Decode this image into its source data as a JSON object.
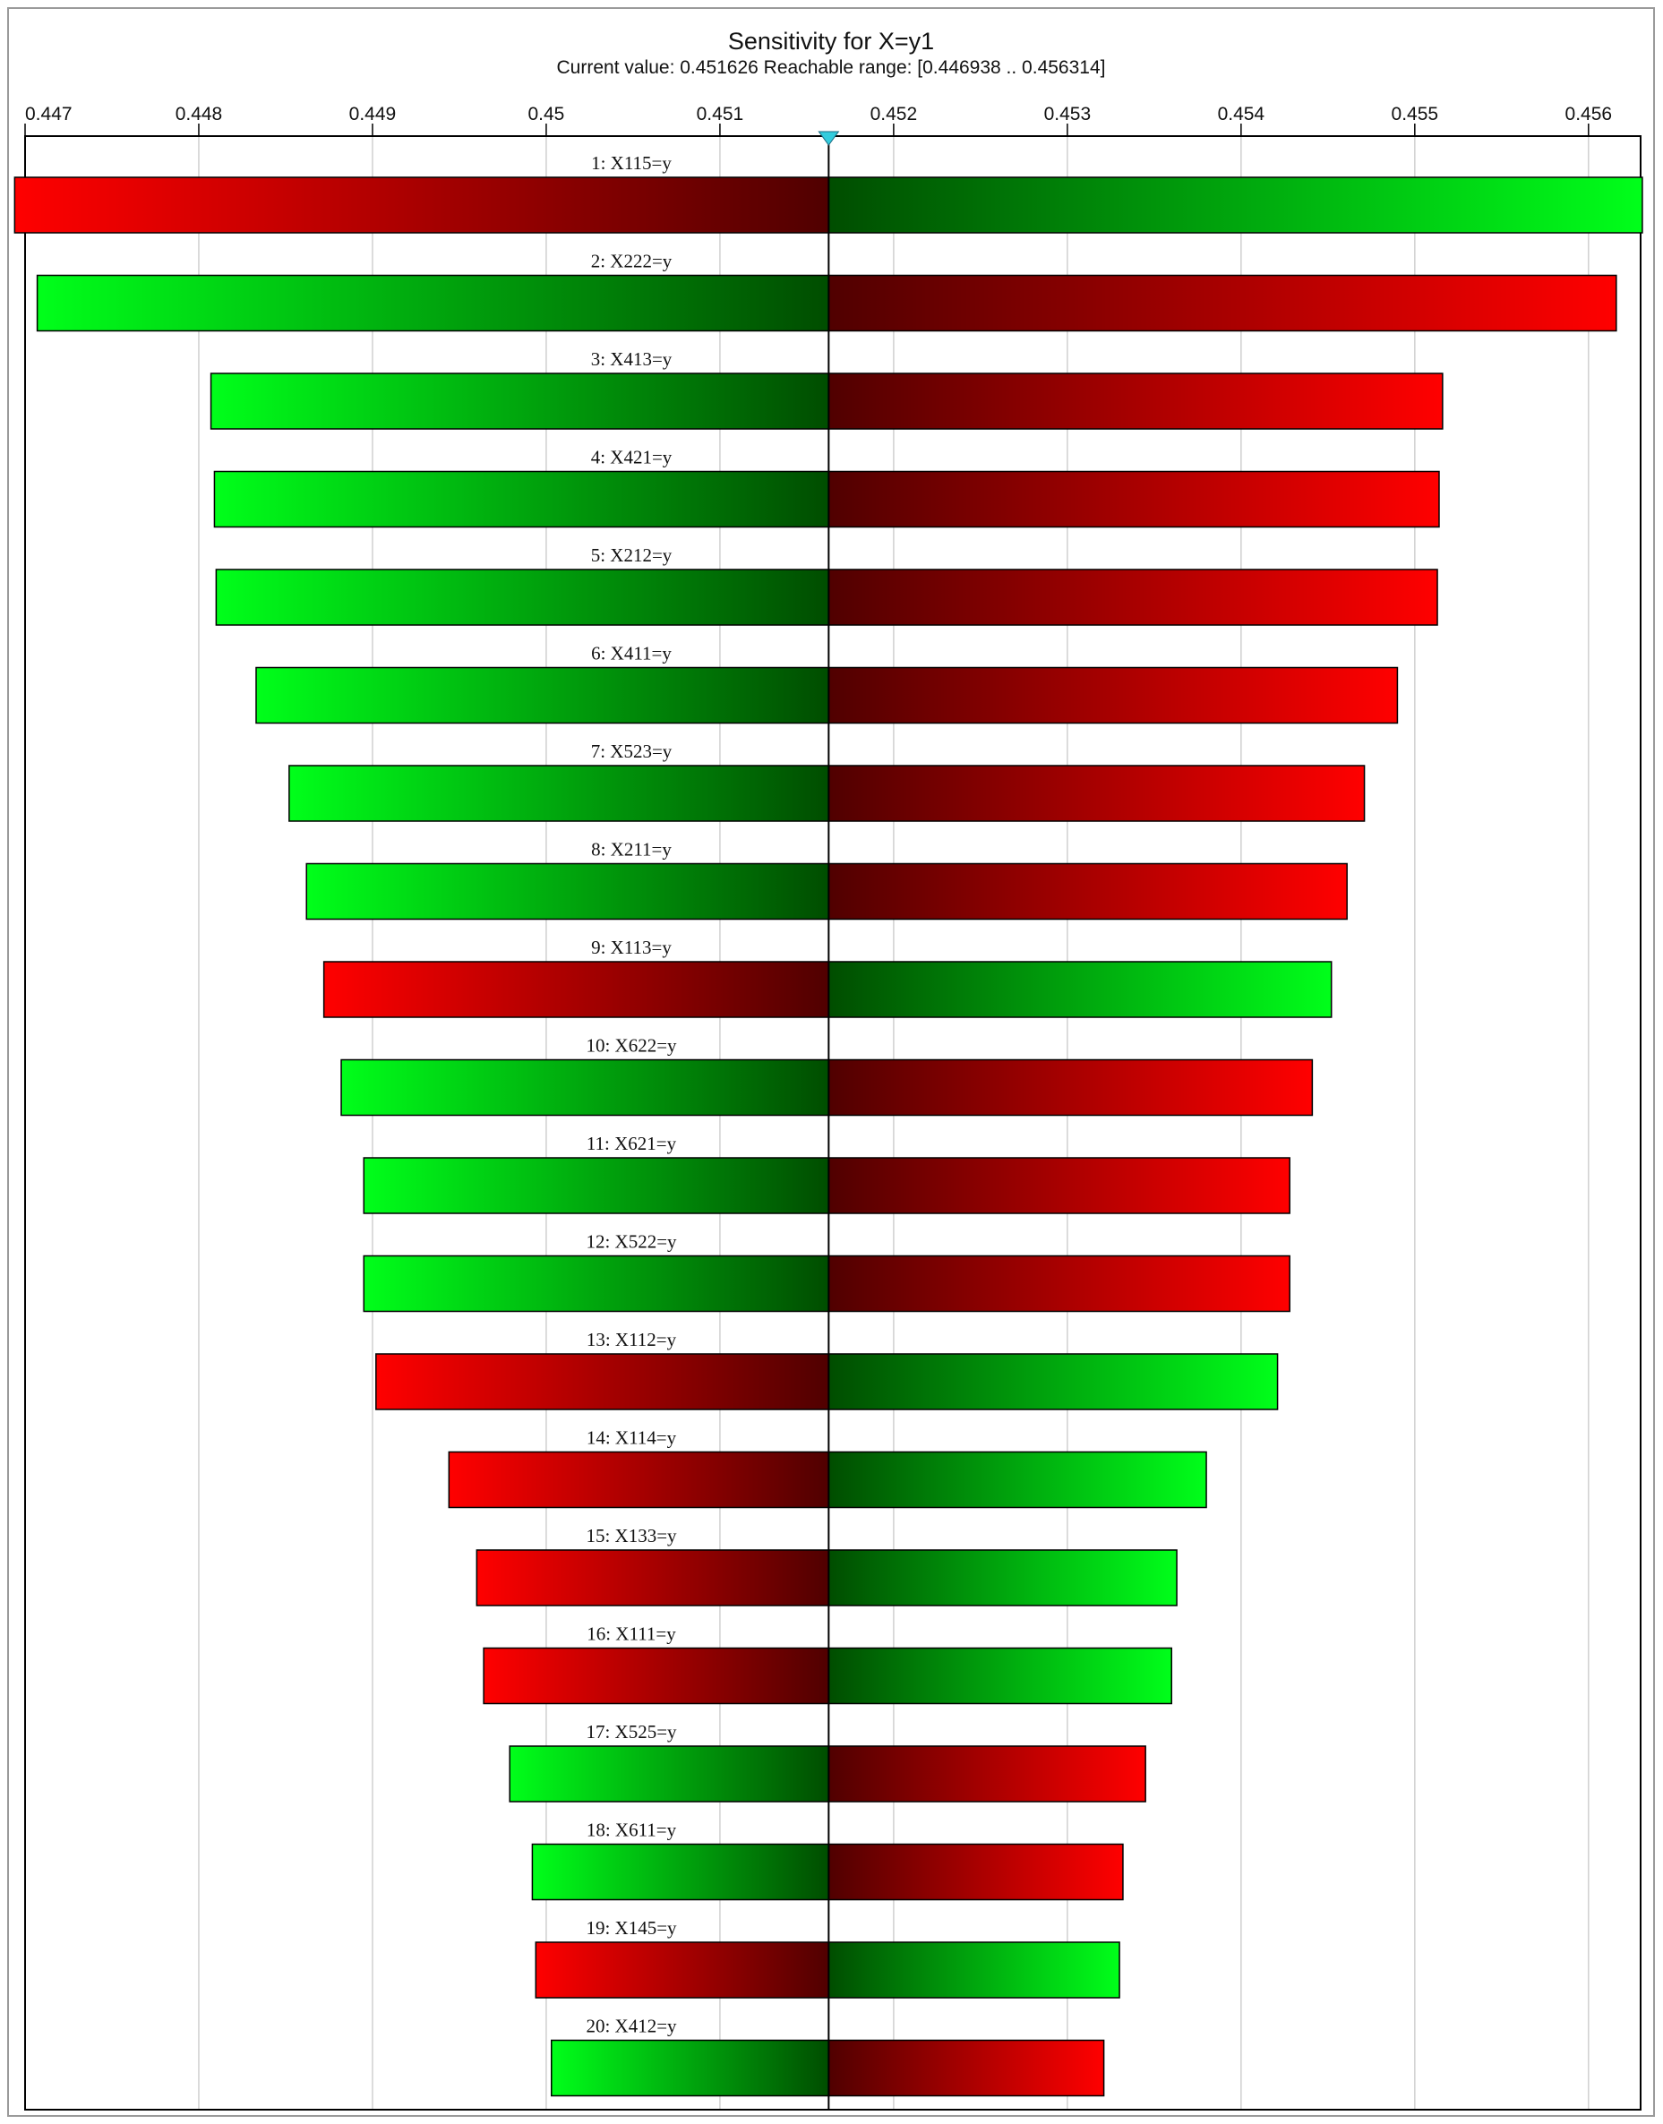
{
  "chart_data": {
    "type": "bar",
    "orientation": "horizontal",
    "title": "Sensitivity for X=y1",
    "subtitle": "Current value: 0.451626  Reachable range: [0.446938 .. 0.456314]",
    "current_value": 0.451626,
    "reachable_range": [
      0.446938,
      0.456314
    ],
    "xlim": [
      0.447,
      0.4563
    ],
    "x_ticks": [
      "0.447",
      "0.448",
      "0.449",
      "0.45",
      "0.451",
      "0.452",
      "0.453",
      "0.454",
      "0.455",
      "0.456"
    ],
    "grid": true,
    "colors": {
      "red": "#ff0000",
      "dark_red": "#500000",
      "green": "#00ff1a",
      "dark_green": "#004d00",
      "marker": "#33ccdd"
    },
    "bars": [
      {
        "label": "1: X115=y",
        "min": 0.44694,
        "max": 0.45631,
        "left_color": "red"
      },
      {
        "label": "2: X222=y",
        "min": 0.44707,
        "max": 0.45616,
        "left_color": "green"
      },
      {
        "label": "3: X413=y",
        "min": 0.44807,
        "max": 0.45516,
        "left_color": "green"
      },
      {
        "label": "4: X421=y",
        "min": 0.44809,
        "max": 0.45514,
        "left_color": "green"
      },
      {
        "label": "5: X212=y",
        "min": 0.4481,
        "max": 0.45513,
        "left_color": "green"
      },
      {
        "label": "6: X411=y",
        "min": 0.44833,
        "max": 0.4549,
        "left_color": "green"
      },
      {
        "label": "7: X523=y",
        "min": 0.44852,
        "max": 0.45471,
        "left_color": "green"
      },
      {
        "label": "8: X211=y",
        "min": 0.44862,
        "max": 0.45461,
        "left_color": "green"
      },
      {
        "label": "9: X113=y",
        "min": 0.44872,
        "max": 0.45452,
        "left_color": "red"
      },
      {
        "label": "10: X622=y",
        "min": 0.44882,
        "max": 0.45441,
        "left_color": "green"
      },
      {
        "label": "11: X621=y",
        "min": 0.44895,
        "max": 0.45428,
        "left_color": "green"
      },
      {
        "label": "12: X522=y",
        "min": 0.44895,
        "max": 0.45428,
        "left_color": "green"
      },
      {
        "label": "13: X112=y",
        "min": 0.44902,
        "max": 0.45421,
        "left_color": "red"
      },
      {
        "label": "14: X114=y",
        "min": 0.44944,
        "max": 0.4538,
        "left_color": "red"
      },
      {
        "label": "15: X133=y",
        "min": 0.4496,
        "max": 0.45363,
        "left_color": "red"
      },
      {
        "label": "16: X111=y",
        "min": 0.44964,
        "max": 0.4536,
        "left_color": "red"
      },
      {
        "label": "17: X525=y",
        "min": 0.44979,
        "max": 0.45345,
        "left_color": "green"
      },
      {
        "label": "18: X611=y",
        "min": 0.44992,
        "max": 0.45332,
        "left_color": "green"
      },
      {
        "label": "19: X145=y",
        "min": 0.44994,
        "max": 0.4533,
        "left_color": "red"
      },
      {
        "label": "20: X412=y",
        "min": 0.45003,
        "max": 0.45321,
        "left_color": "green"
      }
    ]
  }
}
